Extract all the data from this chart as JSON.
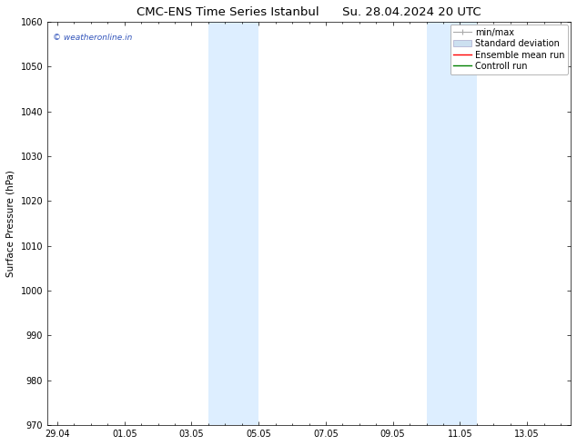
{
  "title_left": "CMC-ENS Time Series Istanbul",
  "title_right": "Su. 28.04.2024 20 UTC",
  "ylabel": "Surface Pressure (hPa)",
  "ylim": [
    970,
    1060
  ],
  "yticks": [
    970,
    980,
    990,
    1000,
    1010,
    1020,
    1030,
    1040,
    1050,
    1060
  ],
  "xtick_labels": [
    "29.04",
    "01.05",
    "03.05",
    "05.05",
    "07.05",
    "09.05",
    "11.05",
    "13.05"
  ],
  "xtick_positions": [
    0,
    2,
    4,
    6,
    8,
    10,
    12,
    14
  ],
  "xmin": -0.3,
  "xmax": 15.3,
  "shaded_bands": [
    {
      "x_start": 4.5,
      "x_end": 6.0
    },
    {
      "x_start": 11.0,
      "x_end": 12.5
    }
  ],
  "shaded_color": "#ddeeff",
  "watermark_text": "© weatheronline.in",
  "watermark_color": "#3355bb",
  "bg_color": "white",
  "title_fontsize": 9.5,
  "label_fontsize": 7.5,
  "tick_fontsize": 7,
  "legend_fontsize": 7,
  "minmax_color": "#aaaaaa",
  "std_color": "#cce0f0",
  "ensemble_color": "red",
  "control_color": "green"
}
